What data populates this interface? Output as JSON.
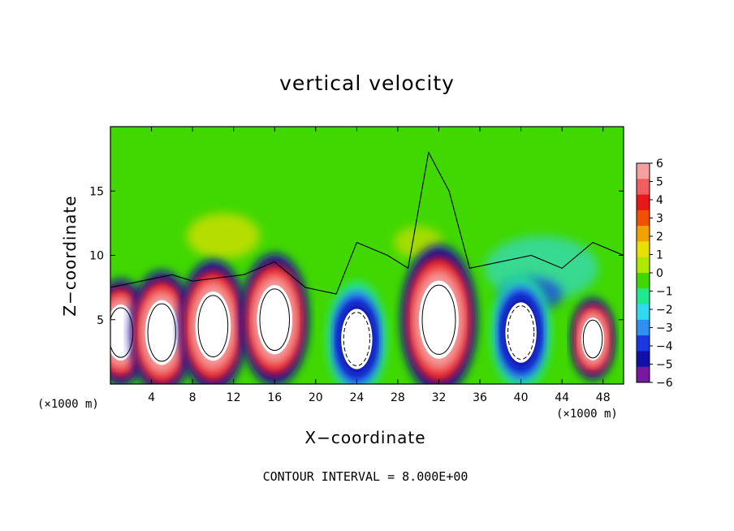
{
  "chart_data": {
    "type": "heatmap",
    "title": "vertical velocity",
    "xlabel": "X−coordinate",
    "ylabel": "Z−coordinate",
    "x_unit_label": "(×1000 m)",
    "footer": "CONTOUR INTERVAL = 8.000E+00",
    "xlim": [
      0,
      50
    ],
    "ylim": [
      0,
      20
    ],
    "x_ticks": [
      4,
      8,
      12,
      16,
      20,
      24,
      28,
      32,
      36,
      40,
      44,
      48
    ],
    "y_ticks": [
      5,
      10,
      15
    ],
    "colorbar": {
      "ticks": [
        6,
        5,
        4,
        3,
        2,
        1,
        0,
        -1,
        -2,
        -3,
        -4,
        -5,
        -6
      ],
      "tick_labels": [
        "6",
        "5",
        "4",
        "3",
        "2",
        "1",
        "0",
        "−1",
        "−2",
        "−3",
        "−4",
        "−5",
        "−6"
      ],
      "colors": [
        "#f5a0a0",
        "#f06060",
        "#e81818",
        "#f05000",
        "#f0a000",
        "#e8e000",
        "#b0e800",
        "#40d800",
        "#20e890",
        "#30d8f0",
        "#3090f0",
        "#1838e0",
        "#1010a8",
        "#7818a0"
      ]
    },
    "updrafts": [
      {
        "x": 1.0,
        "z": 4.0,
        "strength": 18
      },
      {
        "x": 5.0,
        "z": 4.0,
        "strength": 22
      },
      {
        "x": 10.0,
        "z": 4.5,
        "strength": 24
      },
      {
        "x": 16.0,
        "z": 5.0,
        "strength": 24
      },
      {
        "x": 32.0,
        "z": 5.0,
        "strength": 28
      },
      {
        "x": 47.0,
        "z": 3.5,
        "strength": 12
      }
    ],
    "downdrafts": [
      {
        "x": 24.0,
        "z": 3.5,
        "strength": -20
      },
      {
        "x": 40.0,
        "z": 4.0,
        "strength": -20
      }
    ]
  }
}
